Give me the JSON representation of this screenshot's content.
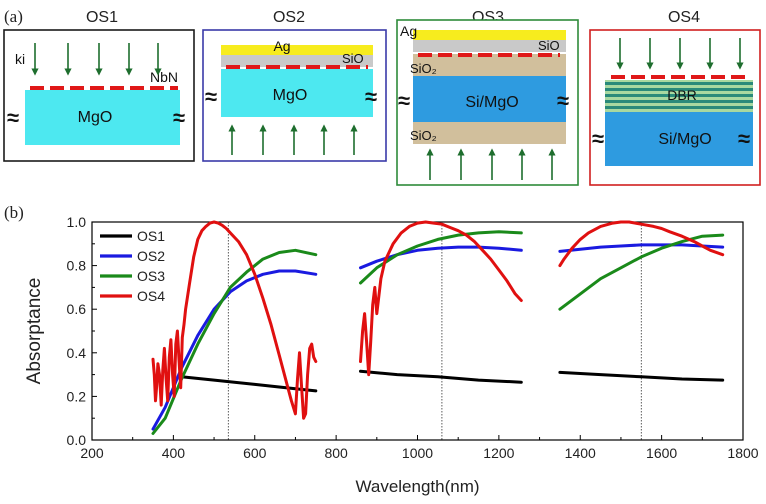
{
  "panel_a": {
    "label": "(a)",
    "structures": [
      {
        "title": "OS1",
        "border": "#1a1a1a",
        "texts": {
          "ki": "ki",
          "nbn": "NbN",
          "substrate": "MgO"
        }
      },
      {
        "title": "OS2",
        "border": "#3a3aa8",
        "texts": {
          "ag": "Ag",
          "sio": "SiO",
          "substrate": "MgO"
        }
      },
      {
        "title": "OS3",
        "border": "#2e8b3a",
        "texts": {
          "ag": "Ag",
          "sio": "SiO",
          "sio2_top": "SiO₂",
          "substrate": "Si/MgO",
          "sio2_bottom": "SiO₂"
        }
      },
      {
        "title": "OS4",
        "border": "#d02020",
        "texts": {
          "dbr": "DBR",
          "substrate": "Si/MgO"
        }
      }
    ],
    "approx_symbol": "≈",
    "colors": {
      "mgo": "#4de8f0",
      "si_mgo": "#2e9be0",
      "ag": "#f7ec1e",
      "sio": "#c9c9c9",
      "sio2": "#d1bf9c",
      "nbn": "#e01818",
      "arrow": "#1e6e2e",
      "dbr_light": "#a8d8a0",
      "dbr_dark": "#2a8a7a"
    }
  },
  "panel_b_label": "(b)",
  "chart_data": {
    "type": "line",
    "xlabel": "Wavelength(nm)",
    "ylabel": "Absorptance",
    "xlim": [
      200,
      1800
    ],
    "ylim": [
      0.0,
      1.0
    ],
    "xticks": [
      200,
      400,
      600,
      800,
      1000,
      1200,
      1400,
      1600,
      1800
    ],
    "yticks": [
      0.0,
      0.2,
      0.4,
      0.6,
      0.8,
      1.0
    ],
    "xtick_labels": [
      "200",
      "400",
      "600",
      "800",
      "1000",
      "1200",
      "1400",
      "1600",
      "1800"
    ],
    "ytick_labels": [
      "0.0",
      "0.2",
      "0.4",
      "0.6",
      "0.8",
      "1.0"
    ],
    "vertical_lines": [
      535,
      1060,
      1550
    ],
    "legend_position": "top-left",
    "grid": false,
    "series": [
      {
        "name": "OS1",
        "color": "#000000",
        "segments": [
          {
            "x": [
              420,
              500,
              600,
              700,
              750
            ],
            "y": [
              0.29,
              0.275,
              0.255,
              0.235,
              0.225
            ]
          },
          {
            "x": [
              860,
              950,
              1050,
              1150,
              1255
            ],
            "y": [
              0.315,
              0.3,
              0.29,
              0.275,
              0.265
            ]
          },
          {
            "x": [
              1350,
              1450,
              1550,
              1650,
              1750
            ],
            "y": [
              0.31,
              0.3,
              0.29,
              0.28,
              0.275
            ]
          }
        ]
      },
      {
        "name": "OS2",
        "color": "#1a1ae0",
        "segments": [
          {
            "x": [
              350,
              380,
              420,
              460,
              500,
              540,
              580,
              620,
              660,
              700,
              750
            ],
            "y": [
              0.05,
              0.15,
              0.33,
              0.48,
              0.6,
              0.68,
              0.73,
              0.76,
              0.775,
              0.775,
              0.76
            ]
          },
          {
            "x": [
              860,
              900,
              950,
              1000,
              1050,
              1100,
              1150,
              1200,
              1255
            ],
            "y": [
              0.79,
              0.82,
              0.85,
              0.87,
              0.88,
              0.885,
              0.885,
              0.88,
              0.87
            ]
          },
          {
            "x": [
              1350,
              1400,
              1450,
              1500,
              1550,
              1600,
              1650,
              1700,
              1750
            ],
            "y": [
              0.865,
              0.875,
              0.885,
              0.89,
              0.895,
              0.895,
              0.895,
              0.89,
              0.885
            ]
          }
        ]
      },
      {
        "name": "OS3",
        "color": "#1a8a1a",
        "segments": [
          {
            "x": [
              350,
              380,
              420,
              460,
              500,
              540,
              580,
              620,
              660,
              700,
              750
            ],
            "y": [
              0.03,
              0.1,
              0.28,
              0.44,
              0.58,
              0.7,
              0.77,
              0.83,
              0.86,
              0.87,
              0.85
            ]
          },
          {
            "x": [
              860,
              900,
              950,
              1000,
              1050,
              1100,
              1150,
              1200,
              1255
            ],
            "y": [
              0.72,
              0.79,
              0.85,
              0.89,
              0.92,
              0.94,
              0.95,
              0.955,
              0.95
            ]
          },
          {
            "x": [
              1350,
              1400,
              1450,
              1500,
              1550,
              1600,
              1650,
              1700,
              1750
            ],
            "y": [
              0.6,
              0.67,
              0.74,
              0.79,
              0.84,
              0.88,
              0.91,
              0.935,
              0.94
            ]
          }
        ]
      },
      {
        "name": "OS4",
        "color": "#e01010",
        "segments": [
          {
            "x": [
              350,
              353,
              356,
              359,
              362,
              366,
              370,
              374,
              378,
              382,
              386,
              390,
              394,
              398,
              402,
              406,
              410,
              414,
              418,
              422,
              426,
              430,
              440,
              450,
              460,
              470,
              480,
              490,
              500,
              510,
              520,
              530,
              540,
              560,
              580,
              600,
              620,
              640,
              660,
              680,
              690,
              700,
              705,
              710,
              715,
              720,
              725,
              730,
              735,
              740,
              745,
              750
            ],
            "y": [
              0.37,
              0.3,
              0.18,
              0.25,
              0.35,
              0.3,
              0.16,
              0.32,
              0.42,
              0.28,
              0.18,
              0.38,
              0.46,
              0.3,
              0.2,
              0.44,
              0.5,
              0.36,
              0.24,
              0.47,
              0.53,
              0.6,
              0.72,
              0.84,
              0.92,
              0.96,
              0.98,
              0.995,
              1.0,
              0.995,
              0.985,
              0.97,
              0.95,
              0.91,
              0.85,
              0.76,
              0.65,
              0.53,
              0.39,
              0.25,
              0.18,
              0.12,
              0.28,
              0.4,
              0.25,
              0.1,
              0.12,
              0.3,
              0.42,
              0.44,
              0.38,
              0.36
            ]
          },
          {
            "x": [
              860,
              865,
              870,
              875,
              880,
              885,
              890,
              895,
              900,
              910,
              920,
              940,
              960,
              980,
              1000,
              1020,
              1040,
              1060,
              1080,
              1100,
              1120,
              1140,
              1160,
              1180,
              1200,
              1220,
              1240,
              1255
            ],
            "y": [
              0.36,
              0.5,
              0.58,
              0.45,
              0.3,
              0.45,
              0.62,
              0.7,
              0.58,
              0.74,
              0.82,
              0.9,
              0.95,
              0.98,
              0.995,
              1.0,
              0.995,
              0.99,
              0.975,
              0.96,
              0.94,
              0.91,
              0.87,
              0.83,
              0.78,
              0.73,
              0.67,
              0.64
            ]
          },
          {
            "x": [
              1350,
              1360,
              1380,
              1400,
              1420,
              1450,
              1480,
              1500,
              1520,
              1550,
              1580,
              1600,
              1620,
              1650,
              1680,
              1700,
              1720,
              1750
            ],
            "y": [
              0.8,
              0.83,
              0.88,
              0.92,
              0.95,
              0.98,
              0.995,
              1.0,
              1.0,
              0.99,
              0.98,
              0.97,
              0.955,
              0.935,
              0.91,
              0.89,
              0.87,
              0.85
            ]
          }
        ]
      }
    ]
  }
}
